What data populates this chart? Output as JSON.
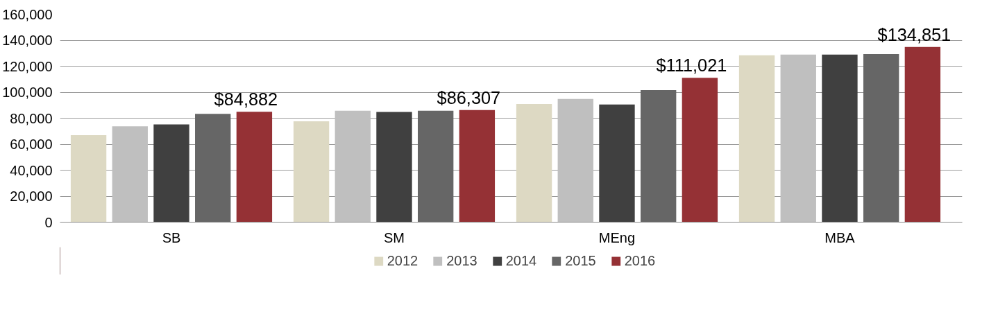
{
  "chart_data": {
    "type": "bar",
    "categories": [
      "SB",
      "SM",
      "MEng",
      "MBA"
    ],
    "series": [
      {
        "name": "2012",
        "color": "#ddd9c3",
        "values": [
          67000,
          77600,
          91000,
          128400
        ]
      },
      {
        "name": "2013",
        "color": "#bfbfbf",
        "values": [
          73800,
          85700,
          94800,
          128900
        ]
      },
      {
        "name": "2014",
        "color": "#404040",
        "values": [
          75200,
          84800,
          90500,
          129000
        ]
      },
      {
        "name": "2015",
        "color": "#666666",
        "values": [
          83400,
          85700,
          101600,
          129300
        ]
      },
      {
        "name": "2016",
        "color": "#953135",
        "values": [
          84882,
          86307,
          111021,
          134851
        ],
        "value_labels": [
          "$84,882",
          "$86,307",
          "$111,021",
          "$134,851"
        ]
      }
    ],
    "ylim": [
      0,
      160000
    ],
    "yticks": [
      0,
      {
        "value": 20000,
        "label": "20,000"
      },
      {
        "value": 40000,
        "label": "40,000"
      },
      {
        "value": 60000,
        "label": "60,000"
      },
      {
        "value": 80000,
        "label": "80,000"
      },
      {
        "value": 100000,
        "label": "100,000"
      },
      {
        "value": 120000,
        "label": "120,000"
      },
      {
        "value": 140000,
        "label": "140,000"
      },
      {
        "value": 160000,
        "label": "160,000"
      }
    ],
    "grid": "y",
    "legend": "bottom"
  }
}
